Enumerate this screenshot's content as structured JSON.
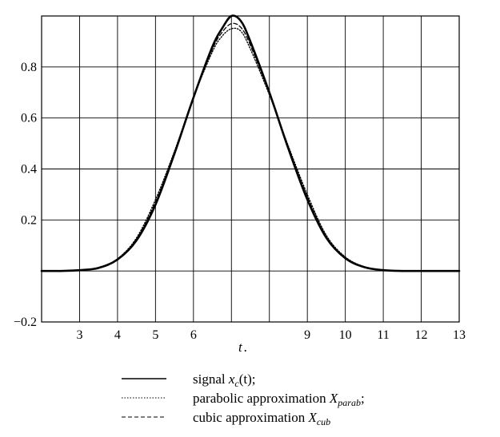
{
  "chart_data": {
    "type": "line",
    "title": "",
    "xlabel": "t",
    "ylabel": "",
    "xlim": [
      2,
      13
    ],
    "ylim": [
      -0.2,
      1.0
    ],
    "grid": true,
    "legend_position": "bottom",
    "x_ticks": [
      3,
      4,
      5,
      6,
      7,
      8,
      9,
      10,
      11,
      12,
      13
    ],
    "x_tick_labels": [
      "3",
      "4",
      "5",
      "6",
      "",
      "",
      "9",
      "10",
      "11",
      "12",
      "13"
    ],
    "y_ticks": [
      -0.2,
      0,
      0.2,
      0.4,
      0.6,
      0.8,
      1.0
    ],
    "y_tick_labels": [
      "−0.2",
      "",
      "0.2",
      "0.4",
      "0.6",
      "0.8",
      ""
    ],
    "x": [
      2.0,
      2.5,
      3.0,
      3.5,
      4.0,
      4.5,
      5.0,
      5.5,
      6.0,
      6.5,
      6.75,
      7.0,
      7.25,
      7.5,
      8.0,
      8.5,
      9.0,
      9.5,
      10.0,
      10.5,
      11.0,
      11.5,
      12.0,
      12.5,
      13.0
    ],
    "series": [
      {
        "name": "signal",
        "style": "solid",
        "values": [
          0.0,
          0.0,
          0.003,
          0.012,
          0.045,
          0.12,
          0.26,
          0.46,
          0.68,
          0.88,
          0.95,
          1.0,
          0.98,
          0.9,
          0.7,
          0.48,
          0.28,
          0.13,
          0.05,
          0.015,
          0.003,
          0.0,
          0.0,
          0.0,
          0.0
        ]
      },
      {
        "name": "parabolic approximation",
        "style": "dotted",
        "values": [
          0.0,
          0.0,
          0.004,
          0.014,
          0.048,
          0.13,
          0.28,
          0.47,
          0.68,
          0.86,
          0.92,
          0.95,
          0.94,
          0.87,
          0.69,
          0.49,
          0.3,
          0.14,
          0.055,
          0.017,
          0.004,
          0.0,
          0.0,
          0.0,
          0.0
        ]
      },
      {
        "name": "cubic approximation",
        "style": "dashed",
        "values": [
          0.0,
          0.0,
          0.004,
          0.013,
          0.046,
          0.125,
          0.27,
          0.465,
          0.68,
          0.87,
          0.935,
          0.97,
          0.955,
          0.885,
          0.695,
          0.485,
          0.29,
          0.135,
          0.052,
          0.016,
          0.003,
          0.0,
          0.0,
          0.0,
          0.0
        ]
      }
    ]
  },
  "legend": [
    {
      "style": "solid",
      "text": "signal ",
      "math": "x",
      "sub": "c",
      "tail": "(t);"
    },
    {
      "style": "dotted",
      "text": "parabolic approximation ",
      "math": "X",
      "sub": "parab",
      "tail": ";"
    },
    {
      "style": "dashed",
      "text": "cubic approximation ",
      "math": "X",
      "sub": "cub",
      "tail": ""
    }
  ]
}
